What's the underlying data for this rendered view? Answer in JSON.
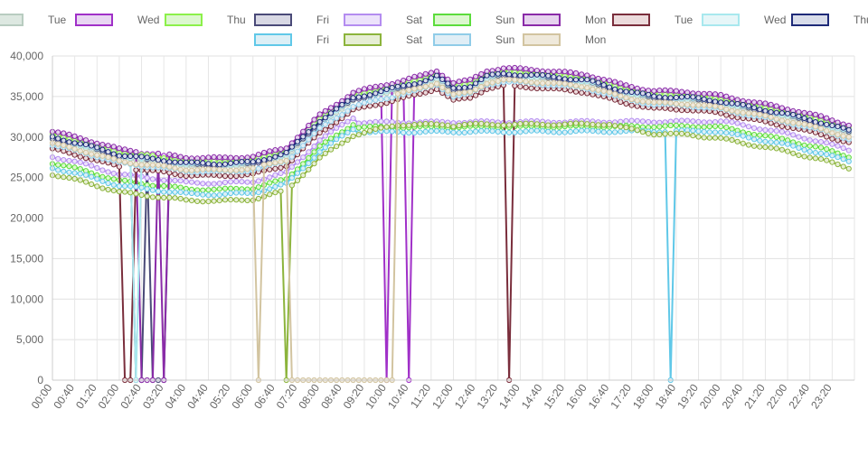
{
  "chart_data": {
    "type": "line",
    "title": "",
    "xlabel": "",
    "ylabel": "",
    "ylim": [
      0,
      40000
    ],
    "yticks": [
      "0",
      "5,000",
      "10,000",
      "15,000",
      "20,000",
      "25,000",
      "30,000",
      "35,000",
      "40,000"
    ],
    "ytick_values": [
      0,
      5000,
      10000,
      15000,
      20000,
      25000,
      30000,
      35000,
      40000
    ],
    "xticks": [
      "00:00",
      "00:40",
      "01:20",
      "02:00",
      "02:40",
      "03:20",
      "04:00",
      "04:40",
      "05:20",
      "06:00",
      "06:40",
      "07:20",
      "08:00",
      "08:40",
      "09:20",
      "10:00",
      "10:40",
      "11:20",
      "12:00",
      "12:40",
      "13:20",
      "14:00",
      "14:40",
      "15:20",
      "16:00",
      "16:40",
      "17:20",
      "18:00",
      "18:40",
      "19:20",
      "20:00",
      "20:40",
      "21:20",
      "22:00",
      "22:40",
      "23:20"
    ],
    "x_interval_minutes": 10,
    "points_per_series": 144,
    "grid": true,
    "legend_position": "top",
    "profile_knots": {
      "note_times_minutes": [
        0,
        60,
        120,
        180,
        240,
        300,
        360,
        420,
        480,
        540,
        600,
        660,
        690,
        720,
        750,
        780,
        810,
        870,
        960,
        1020,
        1080,
        1140,
        1200,
        1260,
        1320,
        1380,
        1430
      ],
      "values": [
        30000,
        29000,
        27800,
        27300,
        26800,
        26700,
        26900,
        28000,
        32000,
        34800,
        35800,
        36800,
        37500,
        36000,
        36300,
        37500,
        37800,
        37600,
        37000,
        35800,
        35000,
        34900,
        34400,
        33600,
        32800,
        31800,
        30800
      ]
    },
    "series": [
      {
        "name": "Tue",
        "color": "#b8ccc0",
        "fill": "#dde8e1",
        "offset": -300,
        "drops": []
      },
      {
        "name": "Wed",
        "color": "#a030c8",
        "fill": "#e8d6f2",
        "offset": 500,
        "drops": [
          [
            600,
            0
          ],
          [
            640,
            0
          ]
        ]
      },
      {
        "name": "Thu",
        "color": "#8cf04a",
        "fill": "#dcf7cf",
        "offset": 300,
        "drops": []
      },
      {
        "name": "Fri",
        "color": "#4a4a78",
        "fill": "#d8d8e4",
        "offset": -200,
        "drops": [
          [
            150,
            0
          ],
          [
            160,
            0
          ],
          [
            180,
            0
          ],
          [
            190,
            0
          ],
          [
            200,
            0
          ]
        ]
      },
      {
        "name": "Sat",
        "color": "#b48cf0",
        "fill": "#ece2fb",
        "offset": -2400,
        "drops": [],
        "flatten_after_morning": 31800
      },
      {
        "name": "Sun",
        "color": "#5cdc3c",
        "fill": "#dcf7cf",
        "offset": -3200,
        "drops": [],
        "flatten_after_morning": 31200
      },
      {
        "name": "Mon",
        "color": "#8a2ba8",
        "fill": "#e6d3ee",
        "offset": 700,
        "drops": [
          [
            160,
            0
          ],
          [
            170,
            0
          ],
          [
            180,
            0
          ],
          [
            200,
            0
          ]
        ]
      },
      {
        "name": "Tue",
        "color": "#7a2e3c",
        "fill": "#ecdbdc",
        "offset": -1500,
        "drops": [
          [
            130,
            0
          ],
          [
            140,
            0
          ],
          [
            820,
            0
          ]
        ]
      },
      {
        "name": "Wed",
        "color": "#a8e8ee",
        "fill": "#e6f6f8",
        "offset": -100,
        "drops": [
          [
            150,
            0
          ]
        ]
      },
      {
        "name": "Thu",
        "color": "#1e2a78",
        "fill": "#d8dcea",
        "offset": 0,
        "drops": []
      },
      {
        "name": "Fri",
        "color": "#60c8e8",
        "fill": "#dceff6",
        "offset": -3800,
        "drops": [
          [
            1110,
            0
          ]
        ],
        "flatten_after_morning": 30600
      },
      {
        "name": "Sat",
        "color": "#8cb43c",
        "fill": "#e6eed4",
        "offset": -4600,
        "drops": [
          [
            420,
            0
          ]
        ],
        "flatten_after_morning": 31500
      },
      {
        "name": "Sun",
        "color": "#90cce8",
        "fill": "#e0eef6",
        "offset": -1000,
        "drops": []
      },
      {
        "name": "Mon",
        "color": "#d2c4a0",
        "fill": "#efe9db",
        "offset": -800,
        "drops": [
          [
            370,
            0
          ]
        ],
        "zero_range": [
          430,
          610
        ]
      }
    ]
  }
}
